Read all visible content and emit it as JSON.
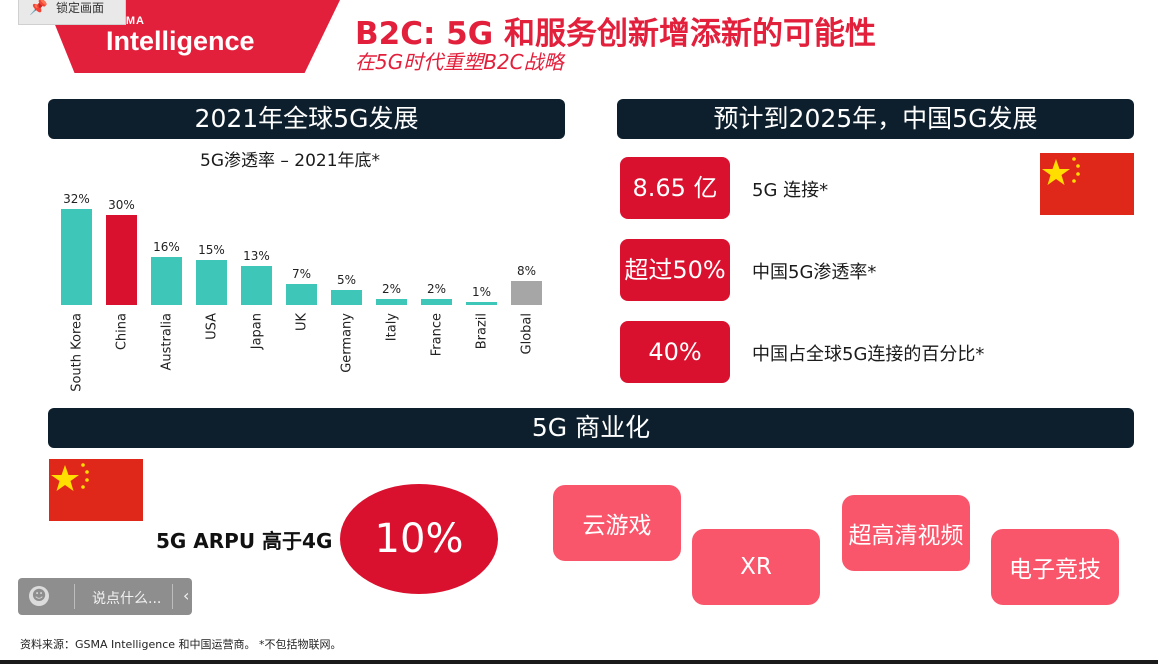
{
  "lock_tag": {
    "label": "锁定画面",
    "icon": "pin-icon"
  },
  "logo": {
    "small": "GSMA",
    "big": "Intelligence",
    "color": "#e2203c"
  },
  "title": "B2C: 5G 和服务创新增添新的可能性",
  "subtitle": "在5G时代重塑B2C战略",
  "left_section": {
    "header": "2021年全球5G发展",
    "chart_subtitle": "5G渗透率 – 2021年底*"
  },
  "chart_data": {
    "type": "bar",
    "categories": [
      "South Korea",
      "China",
      "Australia",
      "USA",
      "Japan",
      "UK",
      "Germany",
      "Italy",
      "France",
      "Brazil",
      "Global"
    ],
    "values": [
      32,
      30,
      16,
      15,
      13,
      7,
      5,
      2,
      2,
      1,
      8
    ],
    "data_labels": [
      "32%",
      "30%",
      "16%",
      "15%",
      "13%",
      "7%",
      "5%",
      "2%",
      "2%",
      "1%",
      "8%"
    ],
    "colors": [
      "#3ec6b8",
      "#d9112f",
      "#3ec6b8",
      "#3ec6b8",
      "#3ec6b8",
      "#3ec6b8",
      "#3ec6b8",
      "#3ec6b8",
      "#3ec6b8",
      "#3ec6b8",
      "#a6a6a6"
    ],
    "title": "5G渗透率 – 2021年底*",
    "ylim": [
      0,
      32
    ],
    "grid": false,
    "legend": "none"
  },
  "right_section": {
    "header": "预计到2025年，中国5G发展",
    "stats": [
      {
        "value": "8.65 亿",
        "label": "5G 连接*"
      },
      {
        "value": "超过50%",
        "label": "中国5G渗透率*"
      },
      {
        "value": "40%",
        "label": "中国占全球5G连接的百分比*"
      }
    ]
  },
  "commercial": {
    "header": "5G 商业化",
    "arpu_label": "5G ARPU 高于4G",
    "arpu_value": "10%",
    "services": [
      "云游戏",
      "XR",
      "超高清视频",
      "电子竞技"
    ]
  },
  "comment_bar": {
    "placeholder": "说点什么...",
    "icon": "smiley-icon",
    "collapse_icon": "chevron-left-icon"
  },
  "footnote": "资料来源：GSMA Intelligence 和中国运营商。 *不包括物联网。",
  "colors": {
    "accent_red": "#d9112f",
    "teal": "#3ec6b8",
    "navy": "#0d1f2d",
    "pink": "#f9566c",
    "flag_red": "#e0281a",
    "flag_star": "#ffde00"
  }
}
